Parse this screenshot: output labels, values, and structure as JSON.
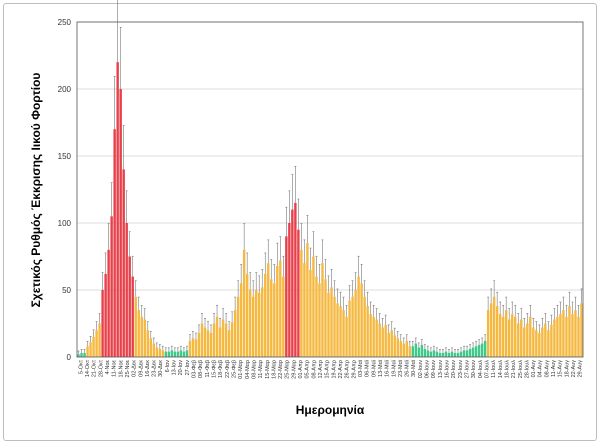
{
  "chart_data": {
    "type": "bar",
    "title": "",
    "ylabel": "Σχετικός Ρυθμός Έκκρισης Ιικού Φορτίου",
    "xlabel": "Ημερομηνία",
    "ylim": [
      0,
      250
    ],
    "yticks": [
      0,
      50,
      100,
      150,
      200,
      250
    ],
    "grid": true,
    "xtick_labels": [
      "5-Οκτ",
      "14-Οκτ",
      "21-Οκτ",
      "28-Οκτ",
      "4-Νοε",
      "11-Νοε",
      "18-Νοε",
      "25-Νοε",
      "02-Δεκ",
      "09-Δεκ",
      "16-Δεκ",
      "23-Δεκ",
      "30-Δεκ",
      "6-Ιαν",
      "13-Ιαν",
      "20-Ιαν",
      "27-Ιαν",
      "03-Φεβ",
      "08-Φεβ",
      "11-Φεβ",
      "15-Φεβ",
      "18-Φεβ",
      "22-Φεβ",
      "25-Φεβ",
      "01-Μαρ",
      "04-Μαρ",
      "08-Μαρ",
      "11-Μαρ",
      "15-Μαρ",
      "18-Μαρ",
      "22-Μαρ",
      "25-Μαρ",
      "29-Μαρ",
      "01-Απρ",
      "05-Απρ",
      "08-Απρ",
      "12-Απρ",
      "15-Απρ",
      "19-Απρ",
      "22-Απρ",
      "26-Απρ",
      "29-Απρ",
      "03-Μαϊ",
      "06-Μαϊ",
      "09-Μαϊ",
      "13-Μαϊ",
      "16-Μαϊ",
      "19-Μαϊ",
      "23-Μαϊ",
      "26-Μαϊ",
      "30-Μαϊ",
      "02-Ιουν",
      "06-Ιουν",
      "09-Ιουν",
      "13-Ιουν",
      "16-Ιουν",
      "20-Ιουν",
      "23-Ιουν",
      "27-Ιουν",
      "30-Ιουν",
      "04-Ιουλ",
      "07-Ιουλ",
      "11-Ιουλ",
      "14-Ιουλ",
      "18-Ιουλ",
      "21-Ιουλ",
      "25-Ιουλ",
      "28-Ιουλ",
      "01-Αυγ",
      "04-Αυγ",
      "08-Αυγ",
      "11-Αυγ",
      "15-Αυγ",
      "18-Αυγ",
      "22-Αυγ",
      "29-Αυγ"
    ],
    "values": [
      2,
      3,
      3,
      8,
      11,
      15,
      20,
      25,
      50,
      62,
      80,
      105,
      170,
      220,
      200,
      140,
      100,
      75,
      60,
      45,
      35,
      30,
      28,
      20,
      14,
      10,
      7,
      6,
      5,
      4,
      4,
      5,
      4,
      4,
      5,
      4,
      5,
      12,
      14,
      13,
      18,
      25,
      22,
      20,
      18,
      25,
      30,
      22,
      28,
      25,
      20,
      26,
      35,
      45,
      55,
      80,
      62,
      50,
      45,
      50,
      48,
      52,
      62,
      70,
      58,
      55,
      68,
      72,
      60,
      90,
      100,
      110,
      115,
      95,
      80,
      70,
      85,
      65,
      75,
      60,
      55,
      70,
      58,
      48,
      52,
      45,
      40,
      38,
      35,
      30,
      42,
      45,
      50,
      60,
      55,
      45,
      38,
      32,
      30,
      28,
      25,
      22,
      24,
      18,
      20,
      16,
      14,
      12,
      10,
      12,
      8,
      8,
      10,
      7,
      9,
      6,
      5,
      4,
      5,
      4,
      3,
      3,
      4,
      3,
      4,
      3,
      3,
      4,
      5,
      5,
      6,
      7,
      8,
      9,
      10,
      12,
      35,
      40,
      45,
      38,
      32,
      30,
      35,
      28,
      32,
      30,
      25,
      28,
      22,
      25,
      30,
      22,
      20,
      18,
      22,
      25,
      20,
      24,
      28,
      30,
      32,
      35,
      30,
      38,
      32,
      35,
      30,
      40
    ],
    "error_fraction": 0.22,
    "level_bands": [
      {
        "from": 0,
        "to": 2,
        "level": "low"
      },
      {
        "from": 3,
        "to": 7,
        "level": "medium"
      },
      {
        "from": 8,
        "to": 18,
        "level": "high"
      },
      {
        "from": 19,
        "to": 28,
        "level": "medium"
      },
      {
        "from": 29,
        "to": 36,
        "level": "low"
      },
      {
        "from": 37,
        "to": 68,
        "level": "medium"
      },
      {
        "from": 69,
        "to": 73,
        "level": "high"
      },
      {
        "from": 74,
        "to": 110,
        "level": "medium"
      },
      {
        "from": 111,
        "to": 135,
        "level": "low"
      },
      {
        "from": 136,
        "to": 167,
        "level": "medium"
      }
    ],
    "colors": {
      "low": "#3fc98a",
      "medium": "#f5b942",
      "high": "#e8404a",
      "error": "#777777",
      "grid": "#dddddd"
    }
  }
}
